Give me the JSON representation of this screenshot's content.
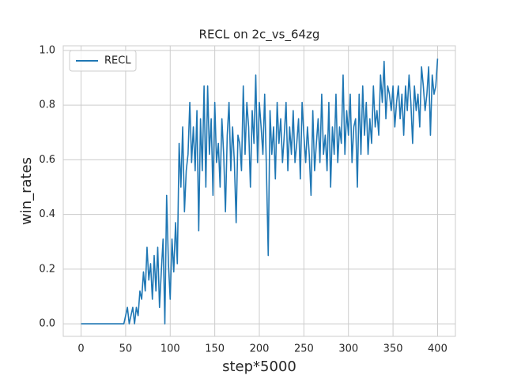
{
  "chart_data": {
    "type": "line",
    "title": "RECL on 2c_vs_64zg",
    "x_label": "step*5000",
    "y_label": "win_rates",
    "legend": "upper left",
    "grid": true,
    "x": [
      0,
      2,
      4,
      6,
      8,
      10,
      12,
      14,
      16,
      18,
      20,
      22,
      24,
      26,
      28,
      30,
      32,
      34,
      36,
      38,
      40,
      42,
      44,
      46,
      48,
      50,
      52,
      54,
      56,
      58,
      60,
      62,
      64,
      66,
      68,
      70,
      72,
      74,
      76,
      78,
      80,
      82,
      84,
      86,
      88,
      90,
      92,
      94,
      96,
      98,
      100,
      102,
      104,
      106,
      108,
      110,
      112,
      114,
      116,
      118,
      120,
      122,
      124,
      126,
      128,
      130,
      132,
      134,
      136,
      138,
      140,
      142,
      144,
      146,
      148,
      150,
      152,
      154,
      156,
      158,
      160,
      162,
      164,
      166,
      168,
      170,
      172,
      174,
      176,
      178,
      180,
      182,
      184,
      186,
      188,
      190,
      192,
      194,
      196,
      198,
      200,
      202,
      204,
      206,
      208,
      210,
      212,
      214,
      216,
      218,
      220,
      222,
      224,
      226,
      228,
      230,
      232,
      234,
      236,
      238,
      240,
      242,
      244,
      246,
      248,
      250,
      252,
      254,
      256,
      258,
      260,
      262,
      264,
      266,
      268,
      270,
      272,
      274,
      276,
      278,
      280,
      282,
      284,
      286,
      288,
      290,
      292,
      294,
      296,
      298,
      300,
      302,
      304,
      306,
      308,
      310,
      312,
      314,
      316,
      318,
      320,
      322,
      324,
      326,
      328,
      330,
      332,
      334,
      336,
      338,
      340,
      342,
      344,
      346,
      348,
      350,
      352,
      354,
      356,
      358,
      360,
      362,
      364,
      366,
      368,
      370,
      372,
      374,
      376,
      378,
      380,
      382,
      384,
      386,
      388,
      390,
      392,
      394,
      396,
      398,
      400
    ],
    "series": [
      {
        "name": "RECL",
        "color": "#1f77b4",
        "values": [
          0,
          0,
          0,
          0,
          0,
          0,
          0,
          0,
          0,
          0,
          0,
          0,
          0,
          0,
          0,
          0,
          0,
          0,
          0,
          0,
          0,
          0,
          0,
          0,
          0,
          0.03,
          0.06,
          0,
          0.03,
          0.06,
          0,
          0.06,
          0.03,
          0.12,
          0.09,
          0.19,
          0.12,
          0.28,
          0.16,
          0.22,
          0.09,
          0.25,
          0.12,
          0.28,
          0.06,
          0.19,
          0.31,
          0,
          0.47,
          0.22,
          0.09,
          0.31,
          0.19,
          0.37,
          0.22,
          0.66,
          0.5,
          0.72,
          0.41,
          0.56,
          0.62,
          0.81,
          0.59,
          0.72,
          0.56,
          0.78,
          0.34,
          0.75,
          0.56,
          0.87,
          0.5,
          0.87,
          0.62,
          0.75,
          0.47,
          0.81,
          0.59,
          0.66,
          0.5,
          0.75,
          0.62,
          0.41,
          0.69,
          0.81,
          0.56,
          0.72,
          0.59,
          0.37,
          0.69,
          0.66,
          0.56,
          0.87,
          0.62,
          0.81,
          0.72,
          0.5,
          0.78,
          0.66,
          0.91,
          0.59,
          0.81,
          0.72,
          0.62,
          0.84,
          0.56,
          0.25,
          0.78,
          0.62,
          0.72,
          0.53,
          0.81,
          0.66,
          0.75,
          0.59,
          0.69,
          0.81,
          0.56,
          0.72,
          0.62,
          0.78,
          0.59,
          0.66,
          0.75,
          0.53,
          0.81,
          0.69,
          0.59,
          0.72,
          0.62,
          0.47,
          0.78,
          0.56,
          0.66,
          0.75,
          0.59,
          0.84,
          0.62,
          0.69,
          0.56,
          0.81,
          0.5,
          0.72,
          0.62,
          0.84,
          0.59,
          0.72,
          0.66,
          0.91,
          0.62,
          0.78,
          0.69,
          0.84,
          0.59,
          0.72,
          0.75,
          0.5,
          0.84,
          0.62,
          0.87,
          0.69,
          0.81,
          0.62,
          0.75,
          0.66,
          0.87,
          0.72,
          0.78,
          0.69,
          0.91,
          0.81,
          0.96,
          0.75,
          0.87,
          0.84,
          0.78,
          0.87,
          0.72,
          0.81,
          0.87,
          0.75,
          0.84,
          0.69,
          0.87,
          0.78,
          0.91,
          0.81,
          0.66,
          0.87,
          0.78,
          0.84,
          0.72,
          0.94,
          0.87,
          0.78,
          0.84,
          0.94,
          0.69,
          0.91,
          0.84,
          0.87,
          0.97
        ]
      }
    ],
    "xlim": [
      -20,
      420
    ],
    "xticks": [
      0,
      50,
      100,
      150,
      200,
      250,
      300,
      350,
      400
    ],
    "ylim": [
      -0.046,
      1.017
    ],
    "yticks": [
      {
        "value": 0,
        "label": "0.0"
      },
      {
        "value": 0.2,
        "label": "0.2"
      },
      {
        "value": 0.4,
        "label": "0.4"
      },
      {
        "value": 0.6,
        "label": "0.6"
      },
      {
        "value": 0.8,
        "label": "0.8"
      },
      {
        "value": 1,
        "label": "1.0"
      }
    ]
  }
}
